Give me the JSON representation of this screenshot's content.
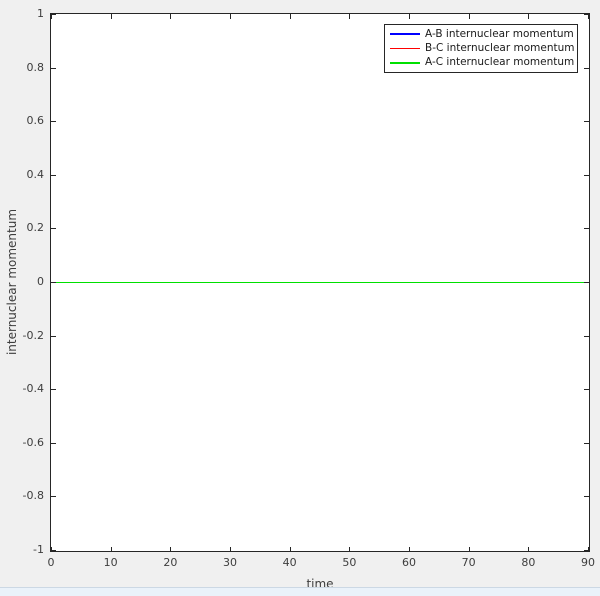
{
  "colors": {
    "figure_bg": "#f0f0f0",
    "plot_bg": "#ffffff",
    "axis": "#262626",
    "tick_label": "#3d3d3d",
    "strip_bg": "#eaf2fa",
    "strip_border": "#ccd8e4"
  },
  "chart_data": {
    "type": "line",
    "title": "",
    "xlabel": "time",
    "ylabel": "internuclear momentum",
    "xlim": [
      0,
      90
    ],
    "ylim": [
      -1,
      1
    ],
    "xticks": [
      0,
      10,
      20,
      30,
      40,
      50,
      60,
      70,
      80,
      90
    ],
    "xtick_labels": [
      "0",
      "10",
      "20",
      "30",
      "40",
      "50",
      "60",
      "70",
      "80",
      "90"
    ],
    "yticks": [
      1,
      0.8,
      0.6,
      0.4,
      0.2,
      0,
      -0.2,
      -0.4,
      -0.6,
      -0.8,
      -1
    ],
    "ytick_labels": [
      "1",
      "0.8",
      "0.6",
      "0.4",
      "0.2",
      "0",
      "-0.2",
      "-0.4",
      "-0.6",
      "-0.8",
      "-1"
    ],
    "grid": false,
    "box": true,
    "tick_dir": "in",
    "legend_position": "top-right",
    "series": [
      {
        "name": "A-B internuclear momentum",
        "color": "#0000ff",
        "x": [
          0,
          90
        ],
        "y": [
          0,
          0
        ]
      },
      {
        "name": "B-C internuclear momentum",
        "color": "#ff0000",
        "x": [
          0,
          90
        ],
        "y": [
          0,
          0
        ]
      },
      {
        "name": "A-C internuclear momentum",
        "color": "#00e000",
        "x": [
          0,
          90
        ],
        "y": [
          0,
          0
        ]
      }
    ]
  }
}
